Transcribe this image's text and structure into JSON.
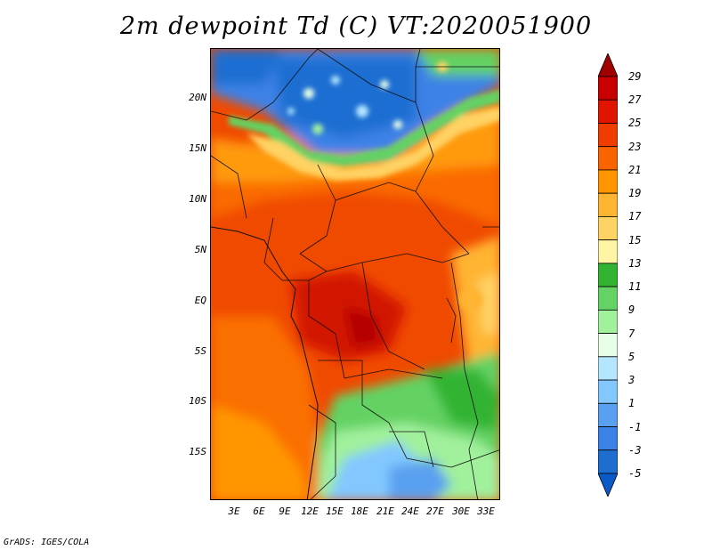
{
  "title": "2m dewpoint Td (C) VT:2020051900",
  "credit": "GrADS: IGES/COLA",
  "map": {
    "lat_labels": [
      "20N",
      "15N",
      "10N",
      "5N",
      "EQ",
      "5S",
      "10S",
      "15S"
    ],
    "lon_labels": [
      "3E",
      "6E",
      "9E",
      "12E",
      "15E",
      "18E",
      "21E",
      "24E",
      "27E",
      "30E",
      "33E"
    ]
  },
  "colorbar": {
    "labels": [
      "29",
      "27",
      "25",
      "23",
      "21",
      "19",
      "17",
      "15",
      "13",
      "11",
      "9",
      "7",
      "5",
      "3",
      "1",
      "-1",
      "-3",
      "-5"
    ],
    "colors": [
      "#a00000",
      "#c80000",
      "#e11400",
      "#f03c00",
      "#fa6400",
      "#ff9600",
      "#ffb432",
      "#ffd264",
      "#fff5a5",
      "#32b432",
      "#64d264",
      "#a0f09c",
      "#e6ffe6",
      "#b4e6ff",
      "#82c8ff",
      "#5aa0f0",
      "#3c82e6",
      "#1e6ed2",
      "#0a5ac8"
    ]
  }
}
